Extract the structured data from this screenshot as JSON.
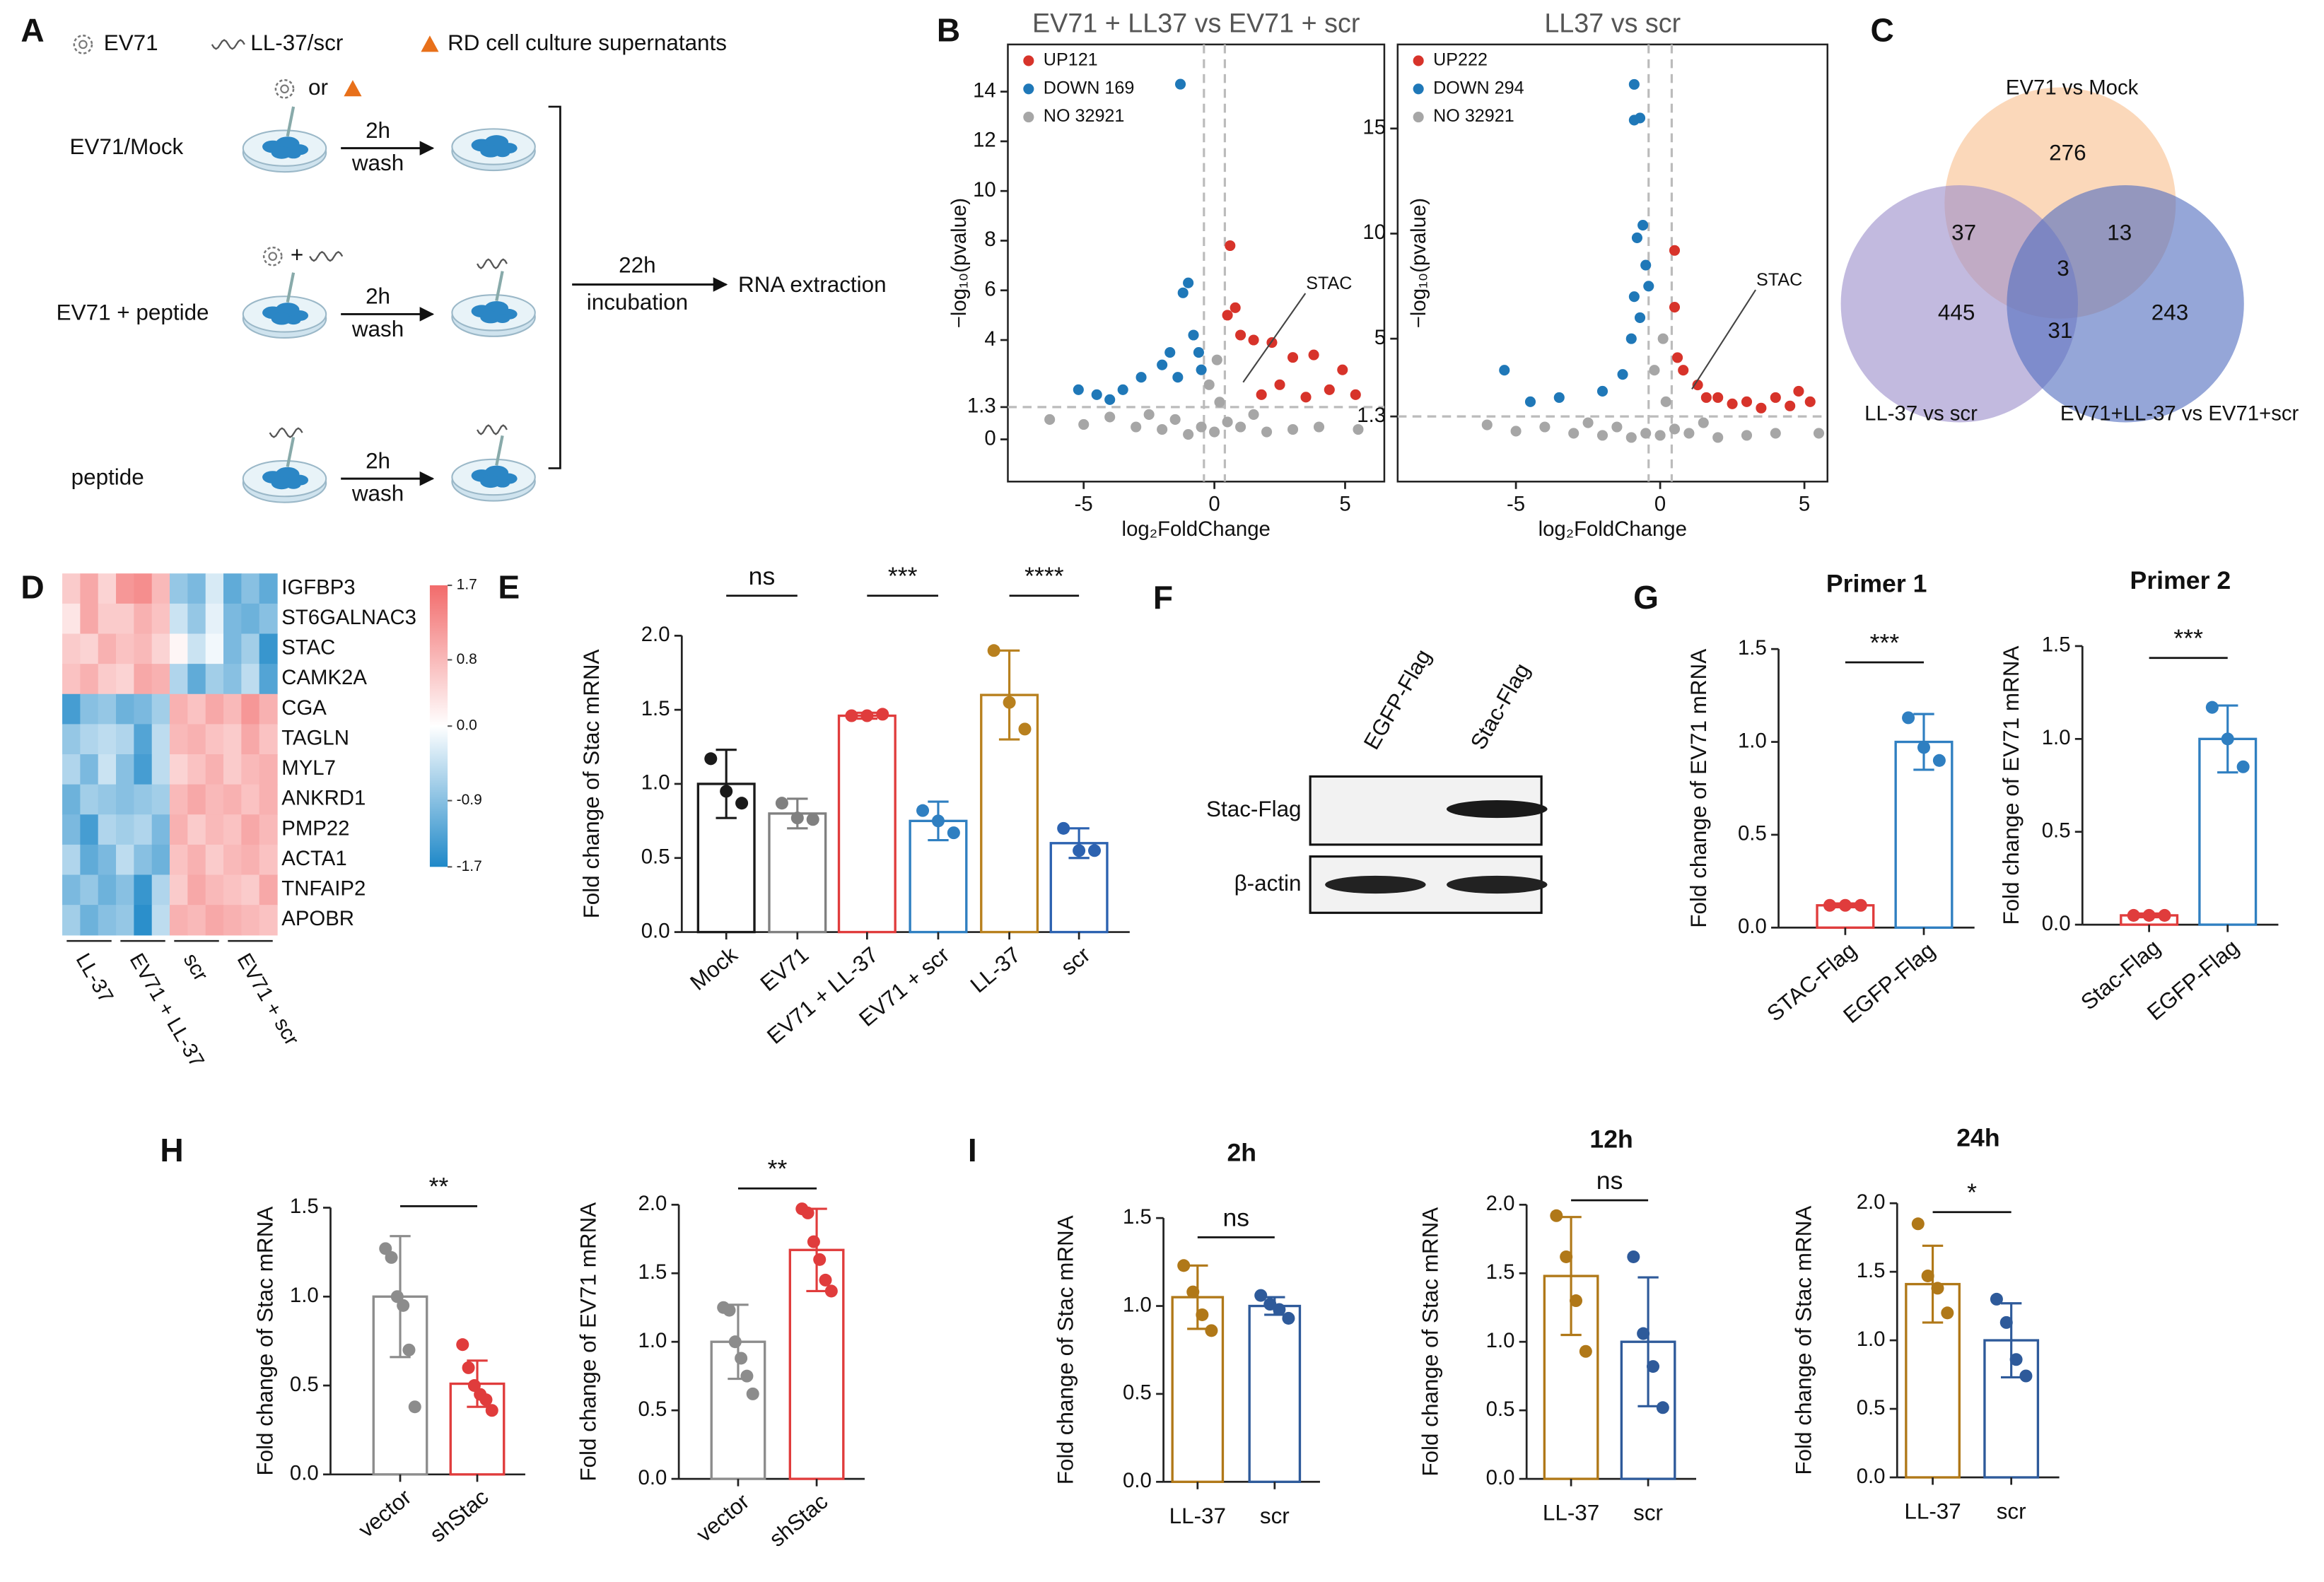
{
  "panel_labels": [
    "A",
    "B",
    "C",
    "D",
    "E",
    "F",
    "G",
    "H",
    "I"
  ],
  "diagram": {
    "legend": [
      "EV71",
      "LL-37/scr",
      "RD cell culture supernatants"
    ],
    "or": "or",
    "plus": "+",
    "rows": [
      {
        "label": "EV71/Mock",
        "time": "2h",
        "step": "wash"
      },
      {
        "label": "EV71 + peptide",
        "time": "2h",
        "step": "wash"
      },
      {
        "label": "peptide",
        "time": "2h",
        "step": "wash"
      }
    ],
    "final": {
      "time": "22h",
      "step": "incubation",
      "result": "RNA extraction"
    }
  },
  "blot": {
    "lanes": [
      "EGFP-Flag",
      "Stac-Flag"
    ],
    "rows": [
      "Stac-Flag",
      "β-actin"
    ]
  },
  "chart_data": [
    {
      "type": "scatter",
      "title": "EV71 + LL37 vs EV71 + scr",
      "xlabel": "log₂FoldChange",
      "ylabel": "−log₁₀(pvalue)",
      "xlim": [
        -7.9,
        6.5
      ],
      "ylim": [
        -1.7,
        15.9
      ],
      "xticks": [
        -5,
        0,
        5
      ],
      "yticks": [
        0,
        1.3,
        4,
        6,
        8,
        10,
        12,
        14
      ],
      "thresholds": {
        "x": [
          -0.4,
          0.4
        ],
        "y": 1.3
      },
      "annotation": {
        "text": "STAC",
        "x": 1.1,
        "y": 2.3
      },
      "series": [
        {
          "name": "UP121",
          "color": "#d7332a",
          "x": [
            0.6,
            0.8,
            0.5,
            1.0,
            1.5,
            2.2,
            3.0,
            3.8,
            4.9,
            4.4,
            3.5,
            2.5,
            1.8,
            5.4
          ],
          "y": [
            7.8,
            5.3,
            5.0,
            4.2,
            4.0,
            3.9,
            3.3,
            3.4,
            2.8,
            2.0,
            1.7,
            2.2,
            1.8,
            1.8
          ]
        },
        {
          "name": "DOWN 169",
          "color": "#1f78b8",
          "x": [
            -1.3,
            -1.0,
            -1.2,
            -0.6,
            -0.8,
            -2.0,
            -1.4,
            -2.8,
            -3.5,
            -4.5,
            -5.2,
            -4.0,
            -0.5,
            -1.7
          ],
          "y": [
            14.3,
            6.3,
            5.9,
            3.5,
            4.2,
            3.0,
            2.5,
            2.5,
            2.0,
            1.8,
            2.0,
            1.6,
            2.8,
            3.5
          ]
        },
        {
          "name": "NO 32921",
          "color": "#a6a6a6",
          "x": [
            -6.3,
            -5,
            -4,
            -3,
            -2.5,
            -2,
            -1.5,
            -1,
            -0.5,
            -0.2,
            0,
            0.2,
            0.5,
            1,
            1.5,
            2,
            3,
            4,
            5.5,
            0.1
          ],
          "y": [
            0.8,
            0.6,
            0.9,
            0.5,
            1.0,
            0.4,
            0.8,
            0.2,
            0.5,
            2.2,
            0.3,
            1.5,
            0.7,
            0.5,
            1.0,
            0.3,
            0.4,
            0.5,
            0.4,
            3.2
          ]
        }
      ]
    },
    {
      "type": "scatter",
      "title": "LL37 vs scr",
      "xlabel": "log₂FoldChange",
      "ylabel": "−log₁₀(pvalue)",
      "xlim": [
        -9.1,
        5.8
      ],
      "ylim": [
        -1.8,
        19
      ],
      "xticks": [
        -5,
        0,
        5
      ],
      "yticks": [
        1.3,
        5,
        10,
        15
      ],
      "thresholds": {
        "x": [
          -0.4,
          0.4
        ],
        "y": 1.3
      },
      "annotation": {
        "text": "STAC",
        "x": 1.1,
        "y": 2.6
      },
      "series": [
        {
          "name": "UP222",
          "color": "#d7332a",
          "x": [
            0.5,
            0.6,
            0.8,
            1.3,
            2.0,
            3.0,
            4.0,
            4.8,
            5.2,
            4.5,
            3.5,
            2.5,
            1.6,
            0.5
          ],
          "y": [
            9.2,
            4.1,
            3.5,
            2.8,
            2.2,
            2.0,
            2.2,
            2.5,
            2.0,
            1.8,
            1.7,
            1.9,
            2.2,
            6.5
          ]
        },
        {
          "name": "DOWN 294",
          "color": "#1f78b8",
          "x": [
            -0.9,
            -0.7,
            -0.9,
            -0.6,
            -0.8,
            -0.5,
            -0.9,
            -0.7,
            -1.0,
            -1.3,
            -2.0,
            -3.5,
            -4.5,
            -5.4,
            -0.4
          ],
          "y": [
            17.1,
            15.5,
            15.4,
            10.4,
            9.8,
            8.5,
            7.0,
            6.0,
            5.0,
            3.3,
            2.5,
            2.2,
            2.0,
            3.5,
            7.5
          ]
        },
        {
          "name": "NO 32921",
          "color": "#a6a6a6",
          "x": [
            -6.0,
            -5,
            -4,
            -3,
            -2.5,
            -2,
            -1.5,
            -1,
            -0.5,
            -0.2,
            0,
            0.2,
            0.5,
            1,
            1.5,
            2,
            3,
            4,
            5.5,
            0.1
          ],
          "y": [
            0.9,
            0.6,
            0.8,
            0.5,
            1.0,
            0.4,
            0.8,
            0.3,
            0.5,
            3.5,
            0.4,
            2.0,
            0.7,
            0.5,
            1.0,
            0.3,
            0.4,
            0.5,
            0.5,
            5.0
          ]
        }
      ]
    },
    {
      "type": "venn",
      "sets": [
        {
          "name": "EV71 vs Mock",
          "color": "#f9c090"
        },
        {
          "name": "LL-37 vs scr",
          "color": "#9d8fcc"
        },
        {
          "name": "EV71+LL-37 vs EV71+scr",
          "color": "#5470c0"
        }
      ],
      "regions": [
        276,
        37,
        13,
        3,
        445,
        31,
        243
      ]
    },
    {
      "type": "heatmap",
      "rows": [
        "IGFBP3",
        "ST6GALNAC3",
        "STAC",
        "CAMK2A",
        "CGA",
        "TAGLN",
        "MYL7",
        "ANKRD1",
        "PMP22",
        "ACTA1",
        "TNFAIP2",
        "APOBR"
      ],
      "groups": [
        "LL-37",
        "EV71 + LL-37",
        "scr",
        "EV71 + scr"
      ],
      "values": [
        [
          0.6,
          1.0,
          0.5,
          1.2,
          1.3,
          0.8,
          -0.8,
          -1.0,
          -0.3,
          -1.2,
          -0.9,
          -1.2
        ],
        [
          0.3,
          1.0,
          0.6,
          0.6,
          0.9,
          0.7,
          -0.4,
          -0.8,
          -0.2,
          -1.0,
          -1.1,
          -0.9
        ],
        [
          0.6,
          0.5,
          0.9,
          0.7,
          0.8,
          0.5,
          0.1,
          -0.4,
          -0.1,
          -1.0,
          -0.7,
          -1.5
        ],
        [
          0.7,
          0.9,
          0.6,
          0.5,
          1.0,
          0.9,
          -0.6,
          -1.2,
          -0.7,
          -0.9,
          -0.5,
          -1.3
        ],
        [
          -1.4,
          -0.9,
          -0.8,
          -1.1,
          -1.0,
          -0.7,
          0.9,
          0.7,
          1.0,
          0.8,
          1.2,
          0.9
        ],
        [
          -0.8,
          -0.6,
          -0.5,
          -0.6,
          -1.3,
          -0.5,
          0.8,
          0.9,
          0.7,
          0.6,
          1.0,
          0.7
        ],
        [
          -0.6,
          -1.0,
          -0.4,
          -0.9,
          -1.4,
          -0.5,
          0.5,
          0.7,
          0.9,
          0.6,
          0.8,
          0.9
        ],
        [
          -1.1,
          -0.7,
          -0.8,
          -0.9,
          -0.8,
          -0.7,
          0.8,
          1.0,
          0.8,
          0.9,
          0.7,
          0.9
        ],
        [
          -1.0,
          -1.4,
          -0.6,
          -0.7,
          -0.6,
          -1.0,
          0.9,
          0.6,
          0.8,
          0.7,
          1.0,
          0.8
        ],
        [
          -0.6,
          -1.2,
          -1.0,
          -0.5,
          -0.9,
          -1.1,
          0.7,
          0.9,
          0.6,
          0.8,
          0.9,
          0.7
        ],
        [
          -1.0,
          -0.8,
          -1.1,
          -0.9,
          -1.5,
          -0.6,
          0.6,
          1.0,
          0.8,
          0.7,
          0.6,
          1.0
        ],
        [
          -0.7,
          -1.1,
          -0.9,
          -0.8,
          -1.6,
          -0.5,
          0.9,
          0.8,
          1.0,
          0.9,
          0.8,
          0.7
        ]
      ],
      "clim": [
        -1.7,
        1.7
      ],
      "colorscale": [
        "#1e88c8",
        "#ffffff",
        "#f26b6b"
      ],
      "cticks": [
        1.7,
        0.8,
        {
          "value": 0,
          "label": "0.0"
        },
        -0.9,
        -1.7
      ]
    },
    {
      "type": "bar",
      "ylabel": "Fold change of Stac mRNA",
      "categories": [
        "Mock",
        "EV71",
        "EV71 + LL-37",
        "EV71 + scr",
        "LL-37",
        "scr"
      ],
      "values": [
        1.0,
        0.8,
        1.46,
        0.75,
        1.6,
        0.6
      ],
      "errors": [
        0.23,
        0.1,
        0.02,
        0.13,
        0.3,
        0.1
      ],
      "points": [
        [
          1.17,
          0.95,
          0.87
        ],
        [
          0.87,
          0.77,
          0.76
        ],
        [
          1.46,
          1.46,
          1.47
        ],
        [
          0.82,
          0.75,
          0.67
        ],
        [
          1.9,
          1.55,
          1.37
        ],
        [
          0.7,
          0.55,
          0.55
        ]
      ],
      "colors": [
        "#1a1a1a",
        "#808080",
        "#e03c3c",
        "#2f7fc1",
        "#b8801e",
        "#2c62b0"
      ],
      "ylim": [
        0,
        2
      ],
      "yticks": [
        {
          "value": 0,
          "label": "0.0"
        },
        0.5,
        {
          "value": 1,
          "label": "1.0"
        },
        1.5,
        {
          "value": 2,
          "label": "2.0"
        }
      ],
      "significance": [
        {
          "pair": [
            0,
            1
          ],
          "label": "ns"
        },
        {
          "pair": [
            2,
            3
          ],
          "label": "***"
        },
        {
          "pair": [
            4,
            5
          ],
          "label": "****"
        }
      ]
    },
    {
      "type": "bar",
      "title": "Primer 1",
      "ylabel": "Fold change of EV71 mRNA",
      "categories": [
        "STAC-Flag",
        "EGFP-Flag"
      ],
      "values": [
        0.12,
        1.0
      ],
      "errors": [
        0.01,
        0.15
      ],
      "points": [
        [
          0.12,
          0.12,
          0.12
        ],
        [
          1.13,
          0.97,
          0.9
        ]
      ],
      "colors": [
        "#e03c3c",
        "#2f7fc1"
      ],
      "ylim": [
        0,
        1.5
      ],
      "yticks": [
        {
          "value": 0,
          "label": "0.0"
        },
        0.5,
        {
          "value": 1,
          "label": "1.0"
        },
        1.5
      ],
      "significance": [
        {
          "pair": [
            0,
            1
          ],
          "label": "***"
        }
      ]
    },
    {
      "type": "bar",
      "title": "Primer 2",
      "ylabel": "Fold change of EV71 mRNA",
      "categories": [
        "Stac-Flag",
        "EGFP-Flag"
      ],
      "values": [
        0.05,
        1.0
      ],
      "errors": [
        0.01,
        0.18
      ],
      "points": [
        [
          0.05,
          0.05,
          0.05
        ],
        [
          1.17,
          1.0,
          0.85
        ]
      ],
      "colors": [
        "#e03c3c",
        "#2f7fc1"
      ],
      "ylim": [
        0,
        1.5
      ],
      "yticks": [
        {
          "value": 0,
          "label": "0.0"
        },
        0.5,
        {
          "value": 1,
          "label": "1.0"
        },
        1.5
      ],
      "significance": [
        {
          "pair": [
            0,
            1
          ],
          "label": "***"
        }
      ]
    },
    {
      "type": "bar",
      "ylabel": "Fold change of Stac mRNA",
      "categories": [
        "vector",
        "shStac"
      ],
      "values": [
        1.0,
        0.51
      ],
      "errors": [
        0.34,
        0.13
      ],
      "points": [
        [
          1.27,
          1.22,
          1.0,
          0.95,
          0.7,
          0.38
        ],
        [
          0.73,
          0.6,
          0.5,
          0.45,
          0.42,
          0.36
        ]
      ],
      "colors": [
        "#8c8c8c",
        "#e03c3c"
      ],
      "ylim": [
        0,
        1.5
      ],
      "yticks": [
        {
          "value": 0,
          "label": "0.0"
        },
        0.5,
        {
          "value": 1,
          "label": "1.0"
        },
        1.5
      ],
      "significance": [
        {
          "pair": [
            0,
            1
          ],
          "label": "**"
        }
      ]
    },
    {
      "type": "bar",
      "ylabel": "Fold change of EV71 mRNA",
      "categories": [
        "vector",
        "shStac"
      ],
      "values": [
        1.0,
        1.67
      ],
      "errors": [
        0.27,
        0.3
      ],
      "points": [
        [
          1.25,
          1.23,
          1.0,
          0.88,
          0.75,
          0.62
        ],
        [
          1.97,
          1.94,
          1.73,
          1.6,
          1.45,
          1.37
        ]
      ],
      "colors": [
        "#8c8c8c",
        "#e03c3c"
      ],
      "ylim": [
        0,
        2
      ],
      "yticks": [
        {
          "value": 0,
          "label": "0.0"
        },
        0.5,
        {
          "value": 1,
          "label": "1.0"
        },
        1.5,
        {
          "value": 2,
          "label": "2.0"
        }
      ],
      "significance": [
        {
          "pair": [
            0,
            1
          ],
          "label": "**"
        }
      ]
    },
    {
      "type": "bar",
      "title": "2h",
      "ylabel": "Fold change of Stac mRNA",
      "categories": [
        "LL-37",
        "scr"
      ],
      "values": [
        1.05,
        1.0
      ],
      "errors": [
        0.18,
        0.05
      ],
      "points": [
        [
          1.23,
          1.08,
          0.95,
          0.86
        ],
        [
          1.06,
          1.01,
          0.98,
          0.93
        ]
      ],
      "colors": [
        "#b07818",
        "#2e5a9a"
      ],
      "ylim": [
        0,
        1.5
      ],
      "yticks": [
        {
          "value": 0,
          "label": "0.0"
        },
        0.5,
        {
          "value": 1,
          "label": "1.0"
        },
        1.5
      ],
      "significance": [
        {
          "pair": [
            0,
            1
          ],
          "label": "ns"
        }
      ]
    },
    {
      "type": "bar",
      "title": "12h",
      "ylabel": "Fold change of Stac mRNA",
      "categories": [
        "LL-37",
        "scr"
      ],
      "values": [
        1.48,
        1.0
      ],
      "errors": [
        0.43,
        0.47
      ],
      "points": [
        [
          1.92,
          1.62,
          1.3,
          0.93
        ],
        [
          1.62,
          1.06,
          0.82,
          0.52
        ]
      ],
      "colors": [
        "#b07818",
        "#2e5a9a"
      ],
      "ylim": [
        0,
        2
      ],
      "yticks": [
        {
          "value": 0,
          "label": "0.0"
        },
        0.5,
        {
          "value": 1,
          "label": "1.0"
        },
        1.5,
        {
          "value": 2,
          "label": "2.0"
        }
      ],
      "significance": [
        {
          "pair": [
            0,
            1
          ],
          "label": "ns"
        }
      ]
    },
    {
      "type": "bar",
      "title": "24h",
      "ylabel": "Fold change of Stac mRNA",
      "categories": [
        "LL-37",
        "scr"
      ],
      "values": [
        1.41,
        1.0
      ],
      "errors": [
        0.28,
        0.27
      ],
      "points": [
        [
          1.85,
          1.47,
          1.38,
          1.2
        ],
        [
          1.3,
          1.13,
          0.86,
          0.74
        ]
      ],
      "colors": [
        "#b07818",
        "#2e5a9a"
      ],
      "ylim": [
        0,
        2
      ],
      "yticks": [
        {
          "value": 0,
          "label": "0.0"
        },
        0.5,
        {
          "value": 1,
          "label": "1.0"
        },
        1.5,
        {
          "value": 2,
          "label": "2.0"
        }
      ],
      "significance": [
        {
          "pair": [
            0,
            1
          ],
          "label": "*"
        }
      ]
    }
  ]
}
